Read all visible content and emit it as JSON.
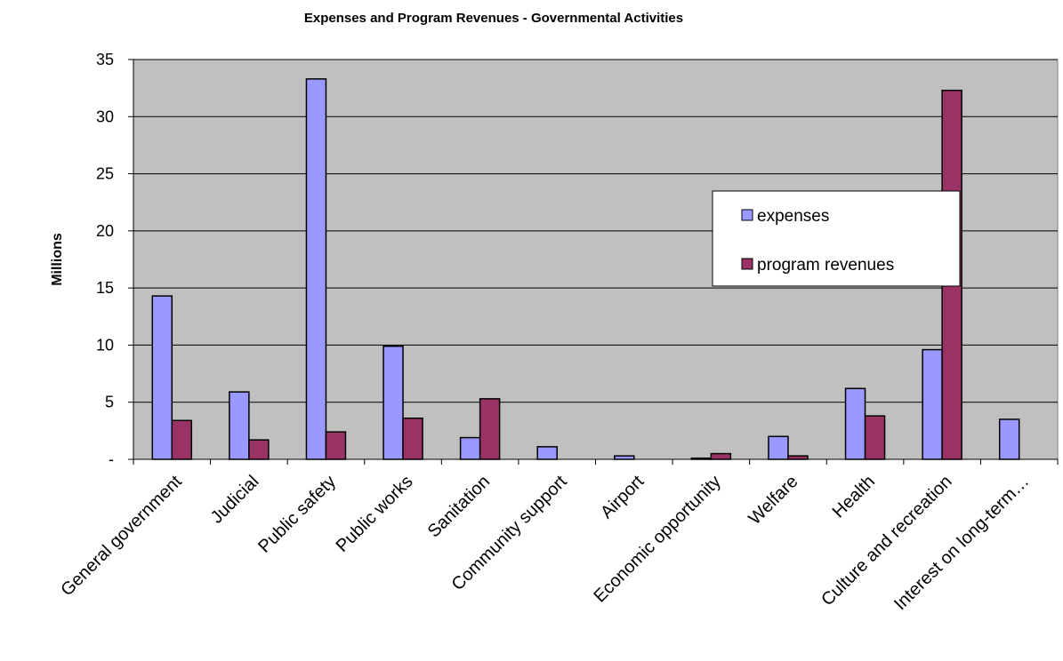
{
  "chart_data": {
    "type": "bar",
    "title": "Expenses and Program Revenues - Governmental Activities",
    "xlabel": "",
    "ylabel": "Millions",
    "ylim": [
      0,
      35
    ],
    "yticks": [
      "-",
      "5",
      "10",
      "15",
      "20",
      "25",
      "30",
      "35"
    ],
    "categories": [
      "General government",
      "Judicial",
      "Public safety",
      "Public works",
      "Sanitation",
      "Community support",
      "Airport",
      "Economic opportunity",
      "Welfare",
      "Health",
      "Culture and recreation",
      "Interest on long-term…"
    ],
    "series": [
      {
        "name": "expenses",
        "color": "#9999ff",
        "values": [
          14.3,
          5.9,
          33.3,
          9.9,
          1.9,
          1.1,
          0.3,
          0.1,
          2.0,
          6.2,
          9.6,
          3.5
        ]
      },
      {
        "name": "program revenues",
        "color": "#993366",
        "values": [
          3.4,
          1.7,
          2.4,
          3.6,
          5.3,
          0,
          0,
          0.5,
          0.3,
          3.8,
          32.3,
          0
        ]
      }
    ],
    "grid": true,
    "plot_background": "#c0c0c0",
    "legend_position": "right"
  }
}
